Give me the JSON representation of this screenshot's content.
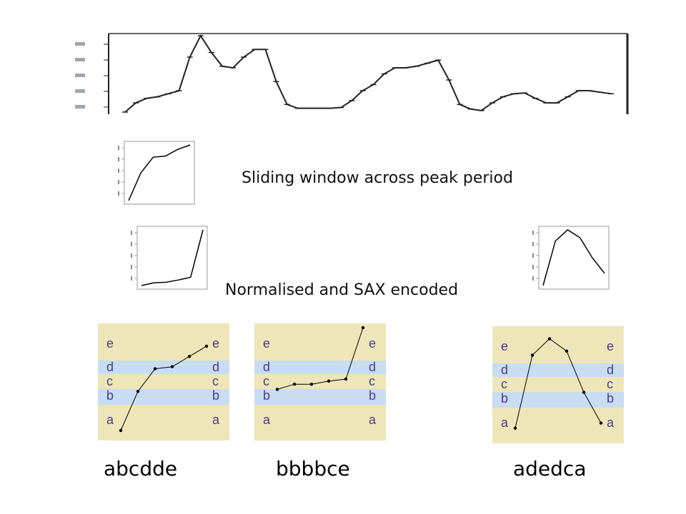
{
  "captions": {
    "sliding": "Sliding window across peak period",
    "normalised": "Normalised and SAX encoded"
  },
  "sax_letters": [
    "a",
    "b",
    "c",
    "d",
    "e"
  ],
  "colors": {
    "panel_bg": "#eee6b8",
    "band_blue": "#c8dcf2",
    "letter": "#4a3d8c",
    "line": "#000000"
  },
  "main_series": [
    0,
    0.12,
    0.18,
    0.2,
    0.24,
    0.28,
    0.72,
    1.0,
    0.78,
    0.6,
    0.58,
    0.72,
    0.82,
    0.82,
    0.4,
    0.1,
    0.05,
    0.05,
    0.05,
    0.05,
    0.06,
    0.15,
    0.28,
    0.36,
    0.5,
    0.58,
    0.58,
    0.6,
    0.64,
    0.68,
    0.42,
    0.1,
    0.04,
    0.02,
    0.12,
    0.2,
    0.24,
    0.25,
    0.18,
    0.12,
    0.12,
    0.2,
    0.28,
    0.28,
    0.26,
    0.24
  ],
  "windows": [
    {
      "values": [
        0.0,
        0.5,
        0.78,
        0.8,
        0.92,
        1.0
      ]
    },
    {
      "values": [
        0.0,
        0.05,
        0.06,
        0.1,
        0.15,
        1.0
      ]
    },
    {
      "values": [
        0.0,
        0.8,
        1.0,
        0.86,
        0.5,
        0.22
      ]
    }
  ],
  "sax_panels": [
    {
      "word": "abcdde",
      "letters": [
        "a",
        "b",
        "c",
        "d",
        "d",
        "e"
      ],
      "levels": [
        0.0,
        0.38,
        0.6,
        0.62,
        0.72,
        0.82
      ]
    },
    {
      "word": "bbbbce",
      "letters": [
        "b",
        "b",
        "b",
        "b",
        "c",
        "e"
      ],
      "levels": [
        0.4,
        0.45,
        0.45,
        0.48,
        0.5,
        1.0
      ]
    },
    {
      "word": "adedca",
      "letters": [
        "a",
        "d",
        "e",
        "d",
        "c",
        "a"
      ],
      "levels": [
        0.05,
        0.76,
        0.92,
        0.8,
        0.4,
        0.1
      ]
    }
  ]
}
